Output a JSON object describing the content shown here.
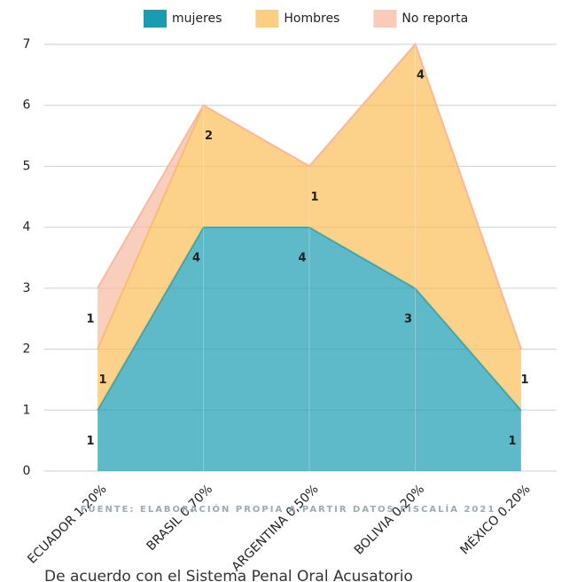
{
  "chart_data": {
    "type": "stacked_area",
    "categories": [
      "ECUADOR 1,20%",
      "BRASIL 0,70%",
      "ARGENTINA 0,50%",
      "BOLIVIA 0,20%",
      "MÉXICO 0.20%"
    ],
    "series": [
      {
        "name": "mujeres",
        "color": "#1a9cb0",
        "values": [
          1,
          4,
          4,
          3,
          1
        ]
      },
      {
        "name": "Hombres",
        "color": "#fbbd57",
        "values": [
          1,
          2,
          1,
          4,
          1
        ]
      },
      {
        "name": "No reporta",
        "color": "#f8b9a0",
        "values": [
          1,
          0,
          0,
          0,
          0
        ]
      }
    ],
    "ylim": [
      0,
      7
    ],
    "yticks": [
      0,
      1,
      2,
      3,
      4,
      5,
      6,
      7
    ],
    "grid": true,
    "legend": "top",
    "annotations": [
      "FUENTE: ELABORACIÓN PROPIA A PARTIR DATOS FISCALÍA 2021",
      "De acuerdo con el Sistema Penal Oral Acusatorio"
    ]
  }
}
